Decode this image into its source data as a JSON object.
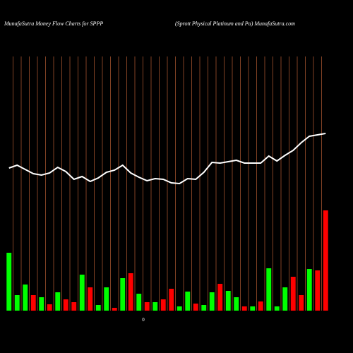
{
  "chart_data": {
    "type": "bar",
    "title": "MunafaSutra  Money Flow  Charts for SPPP",
    "subtitle": "(Sprott Physical Platinum and Pa) MunafaSutra.com",
    "categories": [
      null,
      null,
      null,
      null,
      null,
      null,
      null,
      null,
      null,
      null,
      null,
      null,
      null,
      null,
      null,
      null,
      null,
      null,
      null,
      null,
      null,
      null,
      null,
      null,
      null,
      null,
      null,
      null,
      null,
      null,
      null,
      null,
      null,
      null,
      null,
      null,
      null,
      null,
      null,
      null
    ],
    "values": [
      82,
      22,
      37,
      22,
      19,
      9,
      26,
      16,
      12,
      51,
      33,
      8,
      33,
      4,
      46,
      53,
      24,
      12,
      12,
      16,
      31,
      6,
      27,
      10,
      8,
      26,
      38,
      28,
      19,
      6,
      6,
      13,
      60,
      6,
      33,
      48,
      22,
      59,
      57,
      142
    ],
    "colors": [
      "#00ff00",
      "#00ff00",
      "#00ff00",
      "#ff0000",
      "#00ff00",
      "#ff0000",
      "#00ff00",
      "#ff0000",
      "#ff0000",
      "#00ff00",
      "#ff0000",
      "#00ff00",
      "#00ff00",
      "#ff0000",
      "#00ff00",
      "#ff0000",
      "#00ff00",
      "#ff0000",
      "#00ff00",
      "#ff0000",
      "#ff0000",
      "#00ff00",
      "#00ff00",
      "#ff0000",
      "#00ff00",
      "#00ff00",
      "#ff0000",
      "#00ff00",
      "#00ff00",
      "#ff0000",
      "#00ff00",
      "#ff0000",
      "#00ff00",
      "#00ff00",
      "#00ff00",
      "#ff0000",
      "#ff0000",
      "#00ff00",
      "#ff0000",
      "#ff0000"
    ],
    "line": {
      "color": "#ffffff",
      "values": [
        202,
        206,
        200,
        194,
        192,
        195,
        203,
        197,
        186,
        190,
        183,
        188,
        196,
        199,
        206,
        195,
        189,
        184,
        187,
        186,
        181,
        180,
        187,
        186,
        196,
        210,
        209,
        211,
        213,
        209,
        209,
        209,
        219,
        212,
        220,
        227,
        238,
        247,
        249,
        251
      ]
    },
    "grid_color": "#a0522d",
    "ylim": [
      0,
      440
    ],
    "yticks": [
      0
    ]
  }
}
